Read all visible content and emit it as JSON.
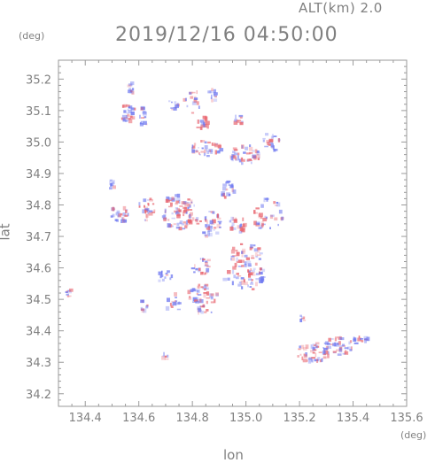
{
  "chart_data": {
    "type": "scatter",
    "title": "2019/12/16 04:50:00",
    "subtitle": "ALT(km) 2.0",
    "xlabel": "lon",
    "ylabel": "lat",
    "x_unit": "(deg)",
    "y_unit": "(deg)",
    "xlim": [
      134.3,
      135.6
    ],
    "ylim": [
      34.16,
      35.26
    ],
    "xticks": [
      "134.4",
      "134.6",
      "134.8",
      "135.0",
      "135.2",
      "135.4",
      "135.6"
    ],
    "yticks": [
      "34.2",
      "34.3",
      "34.4",
      "34.5",
      "34.6",
      "34.7",
      "34.8",
      "34.9",
      "35.0",
      "35.1",
      "35.2"
    ],
    "colors": {
      "positive": "#e8646e",
      "negative": "#6e78f0",
      "axis": "#9a9a9a"
    },
    "clusters": [
      {
        "lon": 134.57,
        "lat": 35.17,
        "rlon": 0.012,
        "rlat": 0.02,
        "n": 10,
        "sign": 0
      },
      {
        "lon": 134.56,
        "lat": 35.09,
        "rlon": 0.03,
        "rlat": 0.03,
        "n": 26,
        "sign": 0
      },
      {
        "lon": 134.62,
        "lat": 35.08,
        "rlon": 0.02,
        "rlat": 0.03,
        "n": 14,
        "sign": -1
      },
      {
        "lon": 134.73,
        "lat": 35.12,
        "rlon": 0.02,
        "rlat": 0.02,
        "n": 10,
        "sign": 0
      },
      {
        "lon": 134.8,
        "lat": 35.13,
        "rlon": 0.03,
        "rlat": 0.04,
        "n": 16,
        "sign": 0
      },
      {
        "lon": 134.88,
        "lat": 35.15,
        "rlon": 0.02,
        "rlat": 0.02,
        "n": 12,
        "sign": -1
      },
      {
        "lon": 134.84,
        "lat": 35.06,
        "rlon": 0.03,
        "rlat": 0.02,
        "n": 14,
        "sign": 0
      },
      {
        "lon": 134.97,
        "lat": 35.07,
        "rlon": 0.02,
        "rlat": 0.02,
        "n": 10,
        "sign": 1
      },
      {
        "lon": 134.85,
        "lat": 34.98,
        "rlon": 0.06,
        "rlat": 0.025,
        "n": 40,
        "sign": 0
      },
      {
        "lon": 135.0,
        "lat": 34.96,
        "rlon": 0.06,
        "rlat": 0.03,
        "n": 44,
        "sign": 0
      },
      {
        "lon": 135.09,
        "lat": 35.0,
        "rlon": 0.04,
        "rlat": 0.03,
        "n": 22,
        "sign": -1
      },
      {
        "lon": 134.5,
        "lat": 34.86,
        "rlon": 0.01,
        "rlat": 0.02,
        "n": 8,
        "sign": -1
      },
      {
        "lon": 134.53,
        "lat": 34.77,
        "rlon": 0.04,
        "rlat": 0.025,
        "n": 26,
        "sign": 0
      },
      {
        "lon": 134.63,
        "lat": 34.79,
        "rlon": 0.03,
        "rlat": 0.04,
        "n": 24,
        "sign": 0
      },
      {
        "lon": 134.75,
        "lat": 34.78,
        "rlon": 0.06,
        "rlat": 0.06,
        "n": 80,
        "sign": 0
      },
      {
        "lon": 134.86,
        "lat": 34.74,
        "rlon": 0.05,
        "rlat": 0.04,
        "n": 38,
        "sign": 0
      },
      {
        "lon": 134.93,
        "lat": 34.85,
        "rlon": 0.03,
        "rlat": 0.03,
        "n": 16,
        "sign": -1
      },
      {
        "lon": 134.97,
        "lat": 34.74,
        "rlon": 0.03,
        "rlat": 0.03,
        "n": 22,
        "sign": 0
      },
      {
        "lon": 135.08,
        "lat": 34.77,
        "rlon": 0.06,
        "rlat": 0.05,
        "n": 36,
        "sign": 0
      },
      {
        "lon": 135.0,
        "lat": 34.64,
        "rlon": 0.06,
        "rlat": 0.04,
        "n": 40,
        "sign": 0
      },
      {
        "lon": 134.84,
        "lat": 34.6,
        "rlon": 0.04,
        "rlat": 0.03,
        "n": 20,
        "sign": 0
      },
      {
        "lon": 134.7,
        "lat": 34.57,
        "rlon": 0.03,
        "rlat": 0.02,
        "n": 12,
        "sign": -1
      },
      {
        "lon": 135.0,
        "lat": 34.57,
        "rlon": 0.08,
        "rlat": 0.04,
        "n": 54,
        "sign": 0
      },
      {
        "lon": 134.84,
        "lat": 34.5,
        "rlon": 0.06,
        "rlat": 0.05,
        "n": 50,
        "sign": 0
      },
      {
        "lon": 134.73,
        "lat": 34.49,
        "rlon": 0.03,
        "rlat": 0.03,
        "n": 16,
        "sign": 0
      },
      {
        "lon": 134.62,
        "lat": 34.48,
        "rlon": 0.015,
        "rlat": 0.02,
        "n": 8,
        "sign": 1
      },
      {
        "lon": 134.34,
        "lat": 34.52,
        "rlon": 0.015,
        "rlat": 0.012,
        "n": 8,
        "sign": -1
      },
      {
        "lon": 134.7,
        "lat": 34.32,
        "rlon": 0.01,
        "rlat": 0.012,
        "n": 6,
        "sign": 0
      },
      {
        "lon": 135.21,
        "lat": 34.44,
        "rlon": 0.015,
        "rlat": 0.01,
        "n": 6,
        "sign": 0
      },
      {
        "lon": 135.25,
        "lat": 34.33,
        "rlon": 0.06,
        "rlat": 0.035,
        "n": 48,
        "sign": 0
      },
      {
        "lon": 135.35,
        "lat": 34.35,
        "rlon": 0.06,
        "rlat": 0.03,
        "n": 40,
        "sign": 0
      },
      {
        "lon": 135.43,
        "lat": 34.37,
        "rlon": 0.03,
        "rlat": 0.015,
        "n": 14,
        "sign": -1
      }
    ]
  }
}
